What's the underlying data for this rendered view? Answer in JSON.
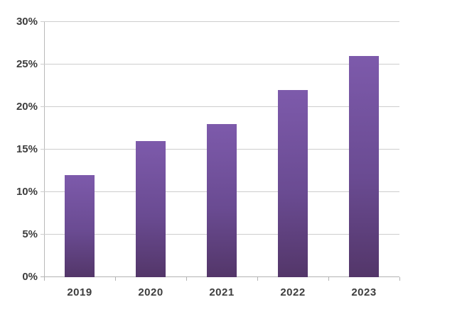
{
  "chart_data": {
    "type": "bar",
    "title": "",
    "xlabel": "",
    "ylabel": "",
    "categories": [
      "2019",
      "2020",
      "2021",
      "2022",
      "2023"
    ],
    "values": [
      12,
      16,
      18,
      22,
      26
    ],
    "value_unit": "%",
    "ylim": [
      0,
      30
    ],
    "ytick_step": 5,
    "ytick_labels": [
      "0%",
      "5%",
      "10%",
      "15%",
      "20%",
      "25%",
      "30%"
    ],
    "grid": "horizontal",
    "legend": "none",
    "colors": {
      "bar_gradient_top": "#7d5aab",
      "bar_gradient_bottom": "#533669",
      "gridline": "#cdcdcd",
      "axis": "#b3b3b3",
      "label_text": "#3d3d3d",
      "background": "#ffffff"
    }
  }
}
